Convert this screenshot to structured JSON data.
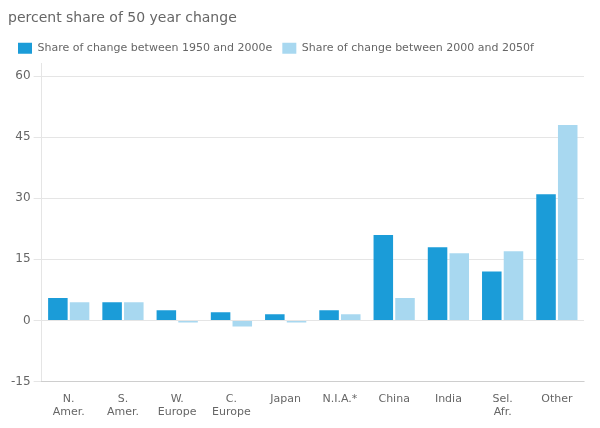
{
  "chart_data": {
    "type": "bar",
    "title": "percent share of 50 year change",
    "categories": [
      [
        "N.",
        "Amer."
      ],
      [
        "S.",
        "Amer."
      ],
      [
        "W.",
        "Europe"
      ],
      [
        "C.",
        "Europe"
      ],
      [
        "Japan"
      ],
      [
        "N.I.A.*"
      ],
      [
        "China"
      ],
      [
        "India"
      ],
      [
        "Sel.",
        "Afr."
      ],
      [
        "Other"
      ]
    ],
    "series": [
      {
        "name": "Share of change between 1950 and 2000e",
        "color": "#1B9CD8",
        "values": [
          5.5,
          4.5,
          2.5,
          2.0,
          1.5,
          2.5,
          21.0,
          18.0,
          12.0,
          31.0
        ]
      },
      {
        "name": "Share of change between 2000 and 2050f",
        "color": "#A8D8F0",
        "values": [
          4.5,
          4.5,
          -0.5,
          -1.5,
          -0.5,
          1.5,
          5.5,
          16.5,
          17.0,
          48.0
        ]
      }
    ],
    "ylim": [
      -15,
      63
    ],
    "yticks": [
      -15,
      0,
      15,
      30,
      45,
      60
    ],
    "grid": true,
    "legend": "upper left"
  }
}
